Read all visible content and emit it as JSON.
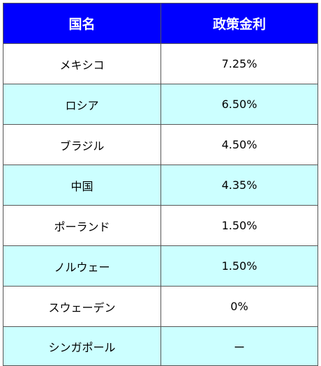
{
  "table": {
    "headers": [
      "国名",
      "政策金利"
    ],
    "rows": [
      {
        "country": "メキシコ",
        "rate": "7.25%"
      },
      {
        "country": "ロシア",
        "rate": "6.50%"
      },
      {
        "country": "ブラジル",
        "rate": "4.50%"
      },
      {
        "country": "中国",
        "rate": "4.35%"
      },
      {
        "country": "ポーランド",
        "rate": "1.50%"
      },
      {
        "country": "ノルウェー",
        "rate": "1.50%"
      },
      {
        "country": "スウェーデン",
        "rate": "0%"
      },
      {
        "country": "シンガポール",
        "rate": "ー"
      }
    ]
  },
  "colors": {
    "header_bg": "#0000ff",
    "header_text": "#ffffff",
    "row_tint": "#ccffff",
    "row_white": "#ffffff",
    "border": "#555555"
  }
}
